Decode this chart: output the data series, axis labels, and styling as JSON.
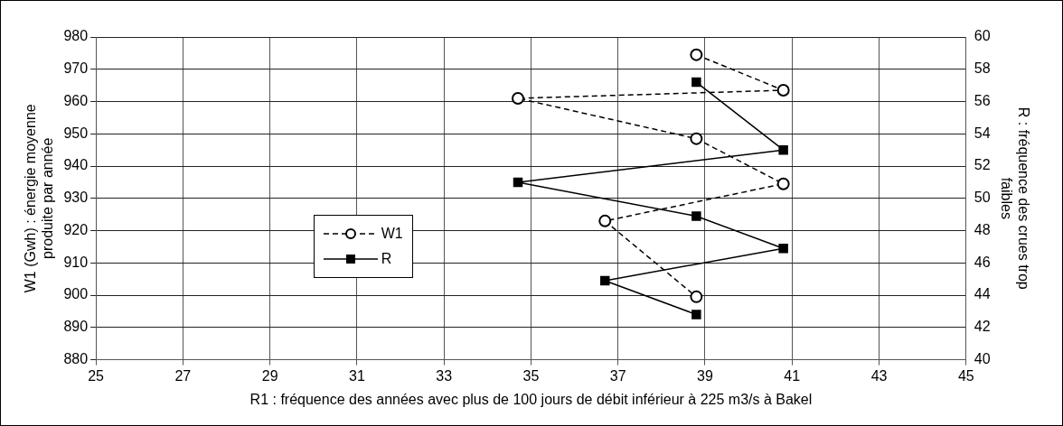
{
  "chart_data": {
    "type": "line",
    "xlabel": "R1 : fréquence des années avec plus de 100 jours de débit inférieur à 225 m3/s à Bakel",
    "ylabel": "W1 (Gwh) : énergie moyenne produite par année",
    "y2label": "R : fréquence des crues trop faibles",
    "xlim": [
      25,
      45
    ],
    "xticks": [
      25,
      27,
      29,
      31,
      33,
      35,
      37,
      39,
      41,
      43,
      45
    ],
    "ylim": [
      880,
      980
    ],
    "yticks": [
      880,
      890,
      900,
      910,
      920,
      930,
      940,
      950,
      960,
      970,
      980
    ],
    "y2lim": [
      40,
      60
    ],
    "y2ticks": [
      40,
      42,
      44,
      46,
      48,
      50,
      52,
      54,
      56,
      58,
      60
    ],
    "grid": true,
    "legend": "left",
    "series": [
      {
        "name": "W1",
        "color": "#000000",
        "marker": "circle",
        "line_style": "dashed",
        "x": [
          38.8,
          40.8,
          34.7,
          38.8,
          40.8,
          36.7,
          38.8
        ],
        "values": [
          974.5,
          963.5,
          961,
          948.5,
          934.5,
          923,
          899.5
        ]
      },
      {
        "name": "R",
        "color": "#000000",
        "marker": "square",
        "line_style": "solid",
        "axis": "y2",
        "x": [
          38.8,
          40.8,
          34.7,
          38.8,
          40.8,
          36.7,
          38.8
        ],
        "values": [
          57.2,
          53,
          51,
          48.9,
          46.9,
          44.9,
          42.8
        ]
      }
    ]
  }
}
